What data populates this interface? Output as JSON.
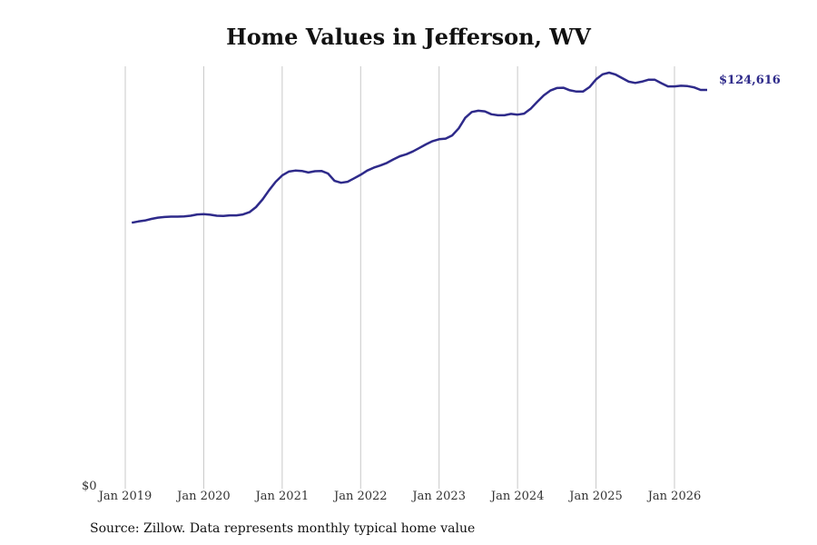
{
  "chart_data": {
    "type": "line",
    "title": "Home Values in Jefferson, WV",
    "xlabel": "",
    "ylabel": "",
    "x_ticks": [
      "Jan 2019",
      "Jan 2020",
      "Jan 2021",
      "Jan 2022",
      "Jan 2023",
      "Jan 2024",
      "Jan 2025",
      "Jan 2026"
    ],
    "y_ticks": [
      "$0"
    ],
    "ylim": [
      0,
      130000
    ],
    "grid": "vertical",
    "line_color": "#2e2a8a",
    "end_label": "$124,616",
    "series": [
      {
        "x": [
          "2019-02",
          "2019-03",
          "2019-04",
          "2019-05",
          "2019-06",
          "2019-07",
          "2019-08",
          "2019-09",
          "2019-10",
          "2019-11",
          "2019-12",
          "2020-01",
          "2020-02",
          "2020-03",
          "2020-04",
          "2020-05",
          "2020-06",
          "2020-07",
          "2020-08",
          "2020-09",
          "2020-10",
          "2020-11",
          "2020-12",
          "2021-01",
          "2021-02",
          "2021-03",
          "2021-04",
          "2021-05",
          "2021-06",
          "2021-07",
          "2021-08",
          "2021-09",
          "2021-10",
          "2021-11",
          "2021-12",
          "2022-01",
          "2022-02",
          "2022-03",
          "2022-04",
          "2022-05",
          "2022-06",
          "2022-07",
          "2022-08",
          "2022-09",
          "2022-10",
          "2022-11",
          "2022-12",
          "2023-01",
          "2023-02",
          "2023-03",
          "2023-04",
          "2023-05",
          "2023-06",
          "2023-07",
          "2023-08",
          "2023-09",
          "2023-10",
          "2023-11",
          "2023-12",
          "2024-01",
          "2024-02",
          "2024-03",
          "2024-04",
          "2024-05",
          "2024-06",
          "2024-07",
          "2024-08",
          "2024-09",
          "2024-10",
          "2024-11",
          "2024-12",
          "2025-01",
          "2025-02",
          "2025-03",
          "2025-04",
          "2025-05",
          "2025-06",
          "2025-07",
          "2025-08",
          "2025-09",
          "2025-10",
          "2025-11",
          "2025-12",
          "2026-01",
          "2026-02",
          "2026-03",
          "2026-04",
          "2026-05",
          "2026-06"
        ],
        "values": [
          83100,
          83500,
          83800,
          84300,
          84700,
          84900,
          85000,
          85000,
          85100,
          85300,
          85700,
          85800,
          85600,
          85300,
          85200,
          85400,
          85400,
          85700,
          86400,
          88000,
          90400,
          93300,
          95900,
          97900,
          99100,
          99400,
          99300,
          98800,
          99200,
          99300,
          98500,
          96200,
          95600,
          95900,
          97000,
          98100,
          99400,
          100300,
          101000,
          101800,
          102900,
          103900,
          104500,
          105400,
          106500,
          107600,
          108600,
          109200,
          109400,
          110400,
          112600,
          115900,
          117700,
          118100,
          117900,
          117000,
          116700,
          116700,
          117100,
          116900,
          117200,
          118700,
          120900,
          122900,
          124400,
          125200,
          125300,
          124500,
          124100,
          124100,
          125500,
          127900,
          129500,
          130000,
          129400,
          128300,
          127200,
          126800,
          127200,
          127800,
          127800,
          126700,
          125700,
          125700,
          125900,
          125800,
          125400,
          124600,
          124616
        ]
      }
    ]
  },
  "source": "Source: Zillow. Data represents monthly typical home value"
}
